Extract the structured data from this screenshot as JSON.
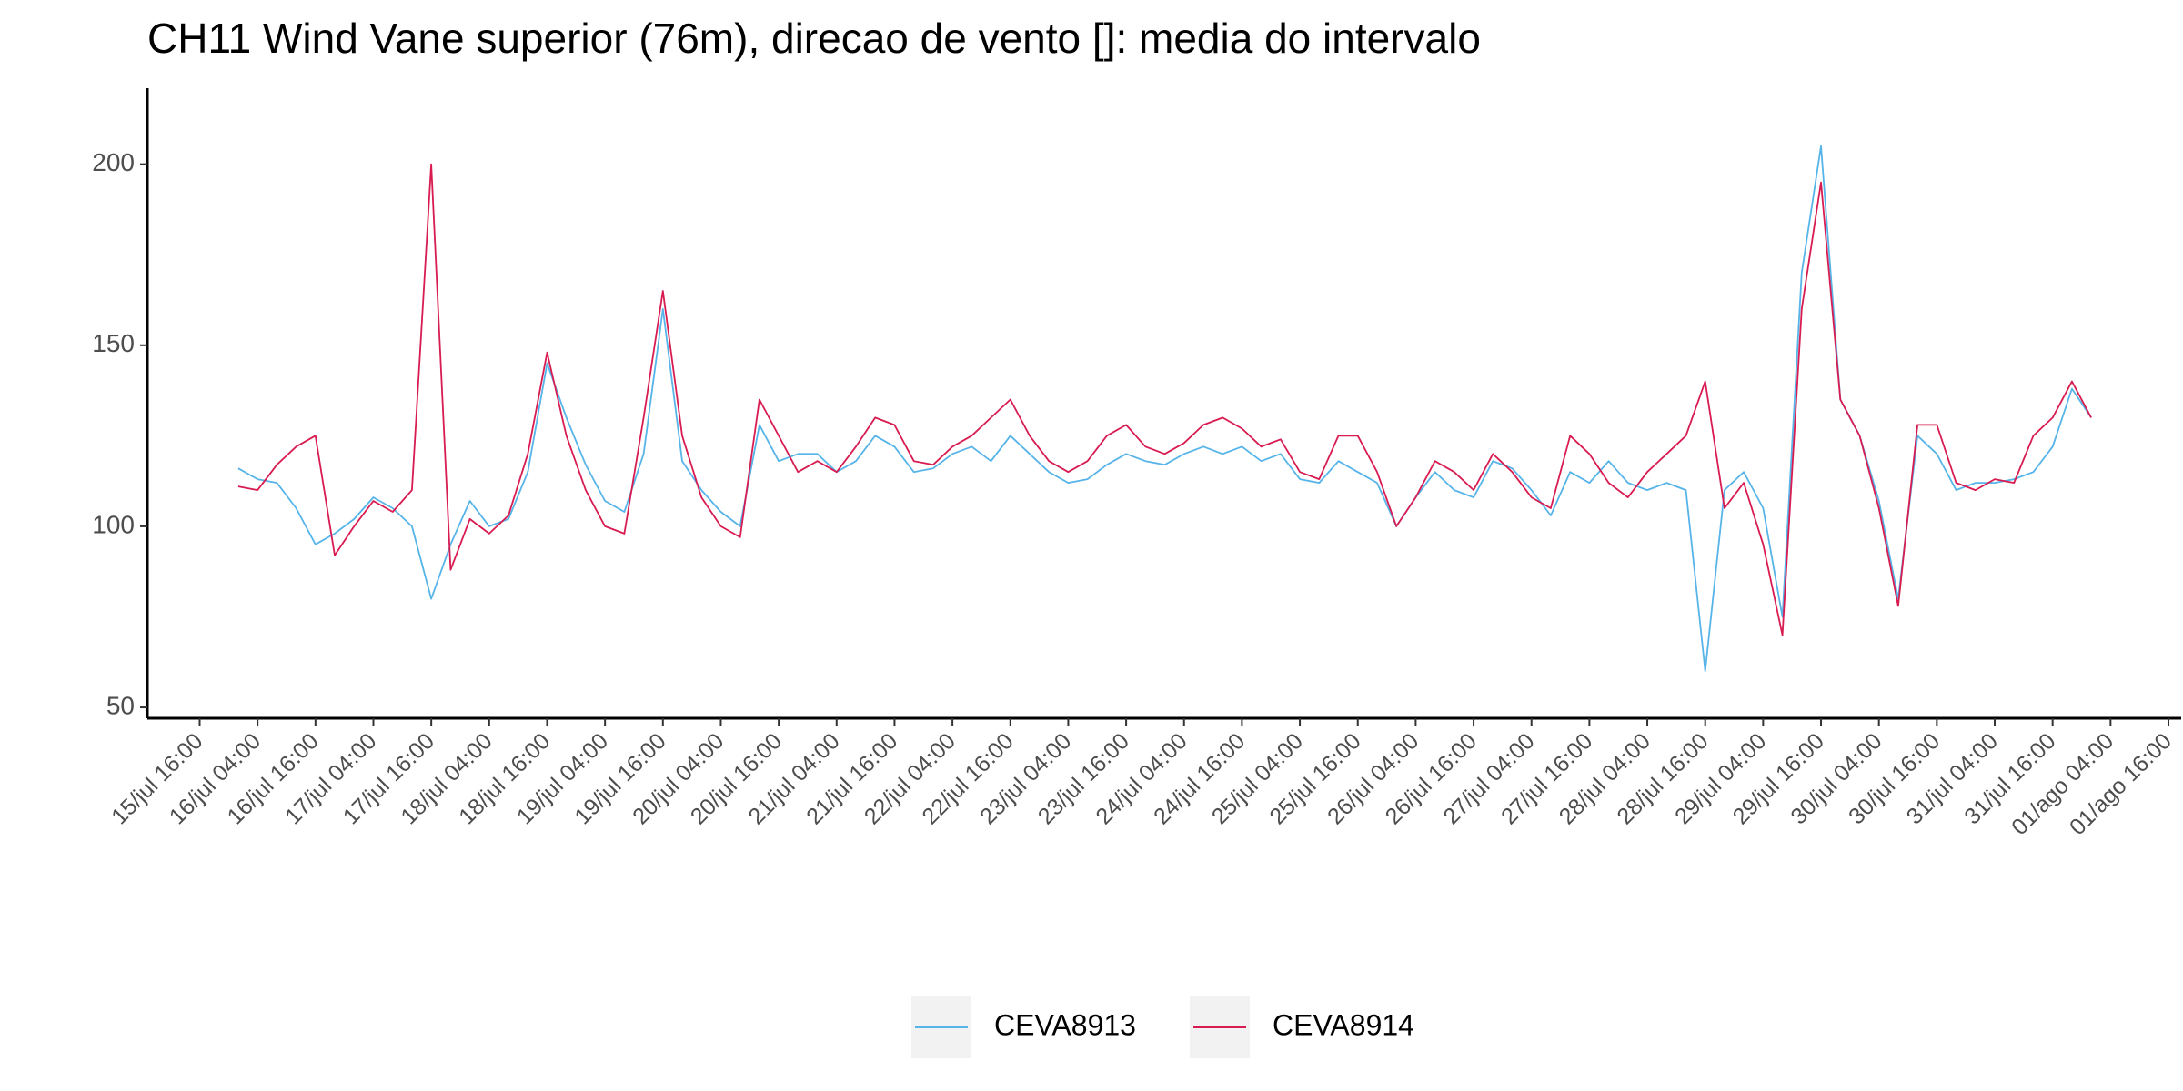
{
  "chart_data": {
    "type": "line",
    "title": "CH11 Wind Vane superior (76m), direcao de vento []: media do intervalo",
    "x": [
      "16/jul 00:00",
      "16/jul 04:00",
      "16/jul 08:00",
      "16/jul 12:00",
      "16/jul 16:00",
      "16/jul 20:00",
      "17/jul 00:00",
      "17/jul 04:00",
      "17/jul 08:00",
      "17/jul 12:00",
      "17/jul 16:00",
      "17/jul 20:00",
      "18/jul 00:00",
      "18/jul 04:00",
      "18/jul 08:00",
      "18/jul 12:00",
      "18/jul 16:00",
      "18/jul 20:00",
      "19/jul 00:00",
      "19/jul 04:00",
      "19/jul 08:00",
      "19/jul 12:00",
      "19/jul 16:00",
      "19/jul 20:00",
      "20/jul 00:00",
      "20/jul 04:00",
      "20/jul 08:00",
      "20/jul 12:00",
      "20/jul 16:00",
      "20/jul 20:00",
      "21/jul 00:00",
      "21/jul 04:00",
      "21/jul 08:00",
      "21/jul 12:00",
      "21/jul 16:00",
      "21/jul 20:00",
      "22/jul 00:00",
      "22/jul 04:00",
      "22/jul 08:00",
      "22/jul 12:00",
      "22/jul 16:00",
      "22/jul 20:00",
      "23/jul 00:00",
      "23/jul 04:00",
      "23/jul 08:00",
      "23/jul 12:00",
      "23/jul 16:00",
      "23/jul 20:00",
      "24/jul 00:00",
      "24/jul 04:00",
      "24/jul 08:00",
      "24/jul 12:00",
      "24/jul 16:00",
      "24/jul 20:00",
      "25/jul 00:00",
      "25/jul 04:00",
      "25/jul 08:00",
      "25/jul 12:00",
      "25/jul 16:00",
      "25/jul 20:00",
      "26/jul 00:00",
      "26/jul 04:00",
      "26/jul 08:00",
      "26/jul 12:00",
      "26/jul 16:00",
      "26/jul 20:00",
      "27/jul 00:00",
      "27/jul 04:00",
      "27/jul 08:00",
      "27/jul 12:00",
      "27/jul 16:00",
      "27/jul 20:00",
      "28/jul 00:00",
      "28/jul 04:00",
      "28/jul 08:00",
      "28/jul 12:00",
      "28/jul 16:00",
      "28/jul 20:00",
      "29/jul 00:00",
      "29/jul 04:00",
      "29/jul 08:00",
      "29/jul 12:00",
      "29/jul 16:00",
      "29/jul 20:00",
      "30/jul 00:00",
      "30/jul 04:00",
      "30/jul 08:00",
      "30/jul 12:00",
      "30/jul 16:00",
      "30/jul 20:00",
      "31/jul 00:00",
      "31/jul 04:00",
      "31/jul 08:00",
      "31/jul 12:00",
      "31/jul 16:00",
      "31/jul 20:00",
      "01/ago 00:00"
    ],
    "series": [
      {
        "name": "CEVA8913",
        "color": "#56b4e9",
        "values": [
          116,
          113,
          112,
          105,
          95,
          98,
          102,
          108,
          105,
          100,
          80,
          95,
          107,
          100,
          102,
          115,
          145,
          130,
          117,
          107,
          104,
          120,
          160,
          118,
          110,
          104,
          100,
          128,
          118,
          120,
          120,
          115,
          118,
          125,
          122,
          115,
          116,
          120,
          122,
          118,
          125,
          120,
          115,
          112,
          113,
          117,
          120,
          118,
          117,
          120,
          122,
          120,
          122,
          118,
          120,
          113,
          112,
          118,
          115,
          112,
          100,
          108,
          115,
          110,
          108,
          118,
          116,
          110,
          103,
          115,
          112,
          118,
          112,
          110,
          112,
          110,
          60,
          110,
          115,
          105,
          75,
          170,
          205,
          135,
          125,
          107,
          80,
          125,
          120,
          110,
          112,
          112,
          113,
          115,
          122,
          138,
          130
        ]
      },
      {
        "name": "CEVA8914",
        "color": "#d81b50",
        "values": [
          111,
          110,
          117,
          122,
          125,
          92,
          100,
          107,
          104,
          110,
          200,
          88,
          102,
          98,
          103,
          120,
          148,
          125,
          110,
          100,
          98,
          130,
          165,
          125,
          108,
          100,
          97,
          135,
          125,
          115,
          118,
          115,
          122,
          130,
          128,
          118,
          117,
          122,
          125,
          130,
          135,
          125,
          118,
          115,
          118,
          125,
          128,
          122,
          120,
          123,
          128,
          130,
          127,
          122,
          124,
          115,
          113,
          125,
          125,
          115,
          100,
          108,
          118,
          115,
          110,
          120,
          115,
          108,
          105,
          125,
          120,
          112,
          108,
          115,
          120,
          125,
          140,
          105,
          112,
          95,
          70,
          160,
          195,
          135,
          125,
          105,
          78,
          128,
          128,
          112,
          110,
          113,
          112,
          125,
          130,
          140,
          130
        ]
      }
    ],
    "ylim": [
      47,
      221
    ],
    "yticks": [
      50,
      100,
      150,
      200
    ],
    "xticks": [
      "15/jul 16:00",
      "16/jul 04:00",
      "16/jul 16:00",
      "17/jul 04:00",
      "17/jul 16:00",
      "18/jul 04:00",
      "18/jul 16:00",
      "19/jul 04:00",
      "19/jul 16:00",
      "20/jul 04:00",
      "20/jul 16:00",
      "21/jul 04:00",
      "21/jul 16:00",
      "22/jul 04:00",
      "22/jul 16:00",
      "23/jul 04:00",
      "23/jul 16:00",
      "24/jul 04:00",
      "24/jul 16:00",
      "25/jul 04:00",
      "25/jul 16:00",
      "26/jul 04:00",
      "26/jul 16:00",
      "27/jul 04:00",
      "27/jul 16:00",
      "28/jul 04:00",
      "28/jul 16:00",
      "29/jul 04:00",
      "29/jul 16:00",
      "30/jul 04:00",
      "30/jul 16:00",
      "31/jul 04:00",
      "31/jul 16:00",
      "01/ago 04:00",
      "01/ago 16:00"
    ],
    "grid": false,
    "legend": "bottom"
  }
}
